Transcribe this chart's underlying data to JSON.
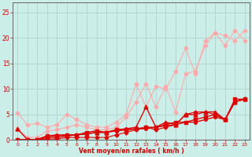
{
  "xlabel": "Vent moyen/en rafales ( km/h )",
  "background_color": "#cceee8",
  "grid_color": "#aacccc",
  "x_values": [
    0,
    1,
    2,
    3,
    4,
    5,
    6,
    7,
    8,
    9,
    10,
    11,
    12,
    13,
    14,
    15,
    16,
    17,
    18,
    19,
    20,
    21,
    22,
    23
  ],
  "series": [
    {
      "color": "#ffaaaa",
      "marker": "D",
      "markersize": 2.5,
      "linewidth": 0.8,
      "y": [
        5.3,
        3.0,
        3.3,
        2.5,
        3.0,
        5.0,
        4.0,
        3.0,
        2.5,
        2.5,
        3.5,
        5.0,
        11.0,
        6.5,
        10.5,
        10.0,
        13.5,
        18.0,
        13.0,
        19.5,
        21.0,
        18.5,
        21.5,
        19.5
      ]
    },
    {
      "color": "#ffaaaa",
      "marker": "D",
      "markersize": 2.5,
      "linewidth": 0.8,
      "y": [
        2.2,
        0.5,
        0.5,
        1.8,
        2.0,
        2.5,
        3.0,
        2.5,
        2.0,
        2.0,
        2.5,
        4.5,
        7.5,
        11.0,
        6.5,
        10.5,
        5.5,
        13.0,
        13.5,
        18.5,
        21.0,
        20.5,
        19.5,
        21.5
      ]
    },
    {
      "color": "#dd0000",
      "marker": "^",
      "markersize": 3.5,
      "linewidth": 1.0,
      "y": [
        2.2,
        0.1,
        0.1,
        0.8,
        1.0,
        1.0,
        1.0,
        1.2,
        1.5,
        1.5,
        2.0,
        2.2,
        2.5,
        6.5,
        2.5,
        3.5,
        3.0,
        5.0,
        5.0,
        5.5,
        5.5,
        4.0,
        7.5,
        8.0
      ]
    },
    {
      "color": "#dd0000",
      "marker": "s",
      "markersize": 2.5,
      "linewidth": 1.0,
      "y": [
        0.1,
        0.1,
        0.1,
        0.8,
        0.8,
        1.0,
        1.0,
        1.5,
        1.8,
        1.5,
        2.0,
        2.0,
        2.2,
        2.5,
        2.5,
        3.0,
        3.5,
        3.5,
        4.0,
        4.5,
        5.0,
        4.0,
        8.0,
        8.0
      ]
    },
    {
      "color": "#dd0000",
      "marker": "o",
      "markersize": 2.5,
      "linewidth": 1.0,
      "y": [
        0.0,
        0.0,
        0.0,
        0.5,
        0.5,
        0.8,
        1.0,
        1.2,
        1.5,
        1.5,
        1.8,
        2.0,
        2.2,
        2.2,
        2.5,
        2.8,
        3.0,
        3.5,
        3.5,
        4.0,
        4.5,
        4.0,
        7.5,
        8.0
      ]
    },
    {
      "color": "#dd0000",
      "marker": "D",
      "markersize": 2.5,
      "linewidth": 0.8,
      "y": [
        0.0,
        0.0,
        0.0,
        0.2,
        0.2,
        0.5,
        0.5,
        0.5,
        0.5,
        0.5,
        1.0,
        1.5,
        2.0,
        2.5,
        2.0,
        2.5,
        3.0,
        5.0,
        5.5,
        5.5,
        5.0,
        4.0,
        7.5,
        8.0
      ]
    }
  ],
  "ylim": [
    0,
    27
  ],
  "xlim": [
    -0.5,
    23.5
  ],
  "yticks": [
    0,
    5,
    10,
    15,
    20,
    25
  ],
  "xticks": [
    0,
    1,
    2,
    3,
    4,
    5,
    6,
    7,
    8,
    9,
    10,
    11,
    12,
    13,
    14,
    15,
    16,
    17,
    18,
    19,
    20,
    21,
    22,
    23
  ],
  "xtick_labels": [
    "0",
    "1",
    "2",
    "3",
    "4",
    "5",
    "6",
    "7",
    "8",
    "9",
    "10",
    "11",
    "12",
    "13",
    "14",
    "15",
    "16",
    "17",
    "18",
    "19",
    "20",
    "21",
    "22",
    "23"
  ]
}
